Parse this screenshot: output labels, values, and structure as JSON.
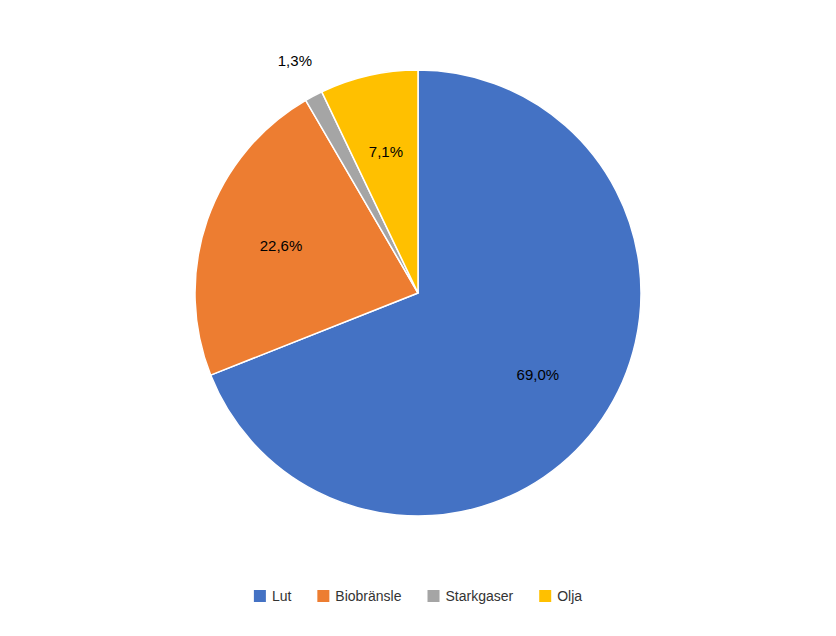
{
  "chart_data": {
    "type": "pie",
    "categories": [
      "Lut",
      "Biobränsle",
      "Starkgaser",
      "Olja"
    ],
    "values": [
      69.0,
      22.6,
      1.3,
      7.1
    ],
    "value_labels": [
      "69,0%",
      "22,6%",
      "1,3%",
      "7,1%"
    ],
    "colors": [
      "#4472C4",
      "#ED7D31",
      "#A5A5A5",
      "#FFC000"
    ],
    "data_labels": true,
    "legend": "bottom"
  }
}
